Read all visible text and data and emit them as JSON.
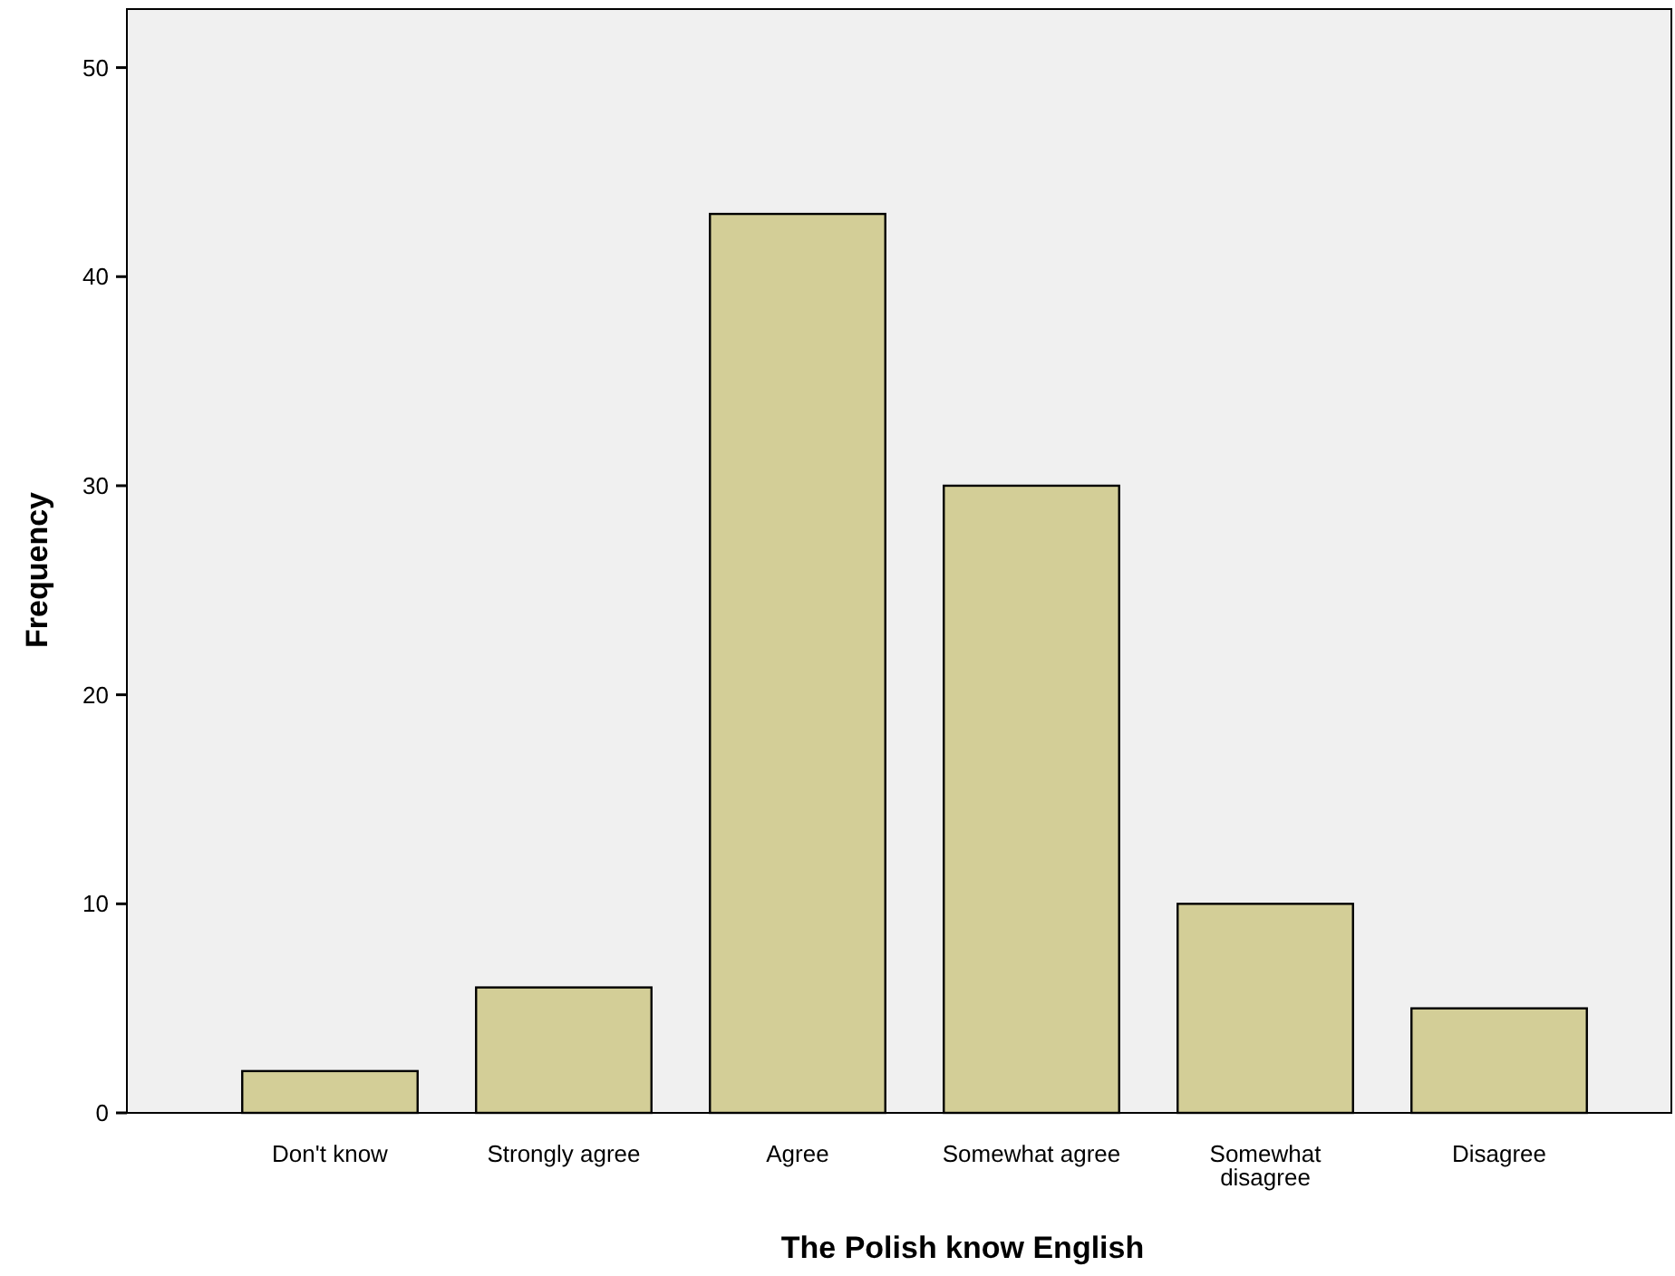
{
  "chart_data": {
    "type": "bar",
    "xlabel": "The Polish know English",
    "ylabel": "Frequency",
    "categories": [
      "Don't know",
      "Strongly agree",
      "Agree",
      "Somewhat agree",
      "Somewhat disagree",
      "Disagree"
    ],
    "values": [
      2,
      6,
      43,
      30,
      10,
      5
    ],
    "color": "#d3ce97",
    "ylim": [
      0,
      52.8
    ],
    "yticks": [
      0,
      10,
      20,
      30,
      40,
      50
    ],
    "grid": false
  }
}
